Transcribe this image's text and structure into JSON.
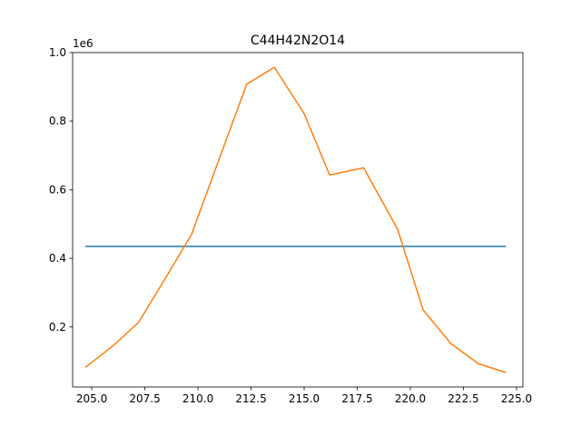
{
  "chart_data": {
    "type": "line",
    "title": "C44H42N2O14",
    "xlabel": "",
    "ylabel": "",
    "y_offset_label": "1e6",
    "xlim": [
      204.1,
      225.3
    ],
    "ylim": [
      25000,
      1000000
    ],
    "x_ticks": [
      205.0,
      207.5,
      210.0,
      212.5,
      215.0,
      217.5,
      220.0,
      222.5,
      225.0
    ],
    "x_tick_labels": [
      "205.0",
      "207.5",
      "210.0",
      "212.5",
      "215.0",
      "217.5",
      "220.0",
      "222.5",
      "225.0"
    ],
    "y_ticks": [
      200000,
      400000,
      600000,
      800000,
      1000000
    ],
    "y_tick_labels": [
      "0.2",
      "0.4",
      "0.6",
      "0.8",
      "1.0"
    ],
    "grid": false,
    "series": [
      {
        "color": "#1f77b4",
        "x": [
          204.7,
          224.5
        ],
        "y": [
          435000,
          435000
        ]
      },
      {
        "color": "#ff7f0e",
        "x": [
          204.7,
          206.0,
          207.2,
          208.5,
          209.7,
          211.0,
          212.3,
          213.6,
          215.0,
          216.2,
          217.8,
          219.4,
          220.6,
          221.9,
          223.2,
          224.5
        ],
        "y": [
          82000,
          145000,
          213000,
          345000,
          470000,
          690000,
          908000,
          957000,
          822000,
          643000,
          664000,
          485000,
          250000,
          152000,
          93000,
          67000
        ]
      }
    ]
  }
}
